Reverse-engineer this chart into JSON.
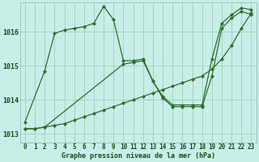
{
  "xlabel": "Graphe pression niveau de la mer (hPa)",
  "background_color": "#c8eee8",
  "grid_color": "#a0d4c0",
  "line_color": "#2d6e2d",
  "ylim": [
    1012.75,
    1016.85
  ],
  "xlim": [
    -0.5,
    23.5
  ],
  "yticks": [
    1013,
    1014,
    1015,
    1016
  ],
  "series1_x": [
    0,
    2,
    3,
    4,
    5,
    6,
    7,
    8,
    9,
    10,
    11,
    12,
    13,
    14,
    15,
    16,
    17,
    18,
    19,
    20,
    21,
    22,
    23
  ],
  "series1_y": [
    1013.35,
    1014.85,
    1015.95,
    1016.05,
    1016.1,
    1016.15,
    1016.25,
    1016.75,
    1016.35,
    1015.15,
    1015.15,
    1015.2,
    1014.55,
    1014.1,
    1013.85,
    1013.85,
    1013.85,
    1013.85,
    1015.2,
    1016.25,
    1016.5,
    1016.7,
    1016.65
  ],
  "series2_x": [
    0,
    1,
    2,
    3,
    4,
    5,
    6,
    7,
    8,
    9,
    10,
    11,
    12,
    13,
    14,
    15,
    16,
    17,
    18,
    19,
    20,
    21,
    22,
    23
  ],
  "series2_y": [
    1013.15,
    1013.15,
    1013.2,
    1013.25,
    1013.3,
    1013.4,
    1013.5,
    1013.6,
    1013.7,
    1013.8,
    1013.9,
    1014.0,
    1014.1,
    1014.2,
    1014.3,
    1014.4,
    1014.5,
    1014.6,
    1014.7,
    1014.9,
    1015.2,
    1015.6,
    1016.1,
    1016.55
  ],
  "series3_x": [
    0,
    1,
    2,
    10,
    11,
    12,
    13,
    14,
    15,
    16,
    17,
    18,
    19,
    20,
    21,
    22,
    23
  ],
  "series3_y": [
    1013.15,
    1013.15,
    1013.2,
    1015.05,
    1015.1,
    1015.15,
    1014.55,
    1014.05,
    1013.8,
    1013.8,
    1013.8,
    1013.8,
    1014.7,
    1016.1,
    1016.4,
    1016.6,
    1016.5
  ],
  "tick_fontsize": 5.5,
  "label_fontsize": 6.0,
  "tick_color": "#1a4a1a",
  "label_color": "#1a4a1a"
}
